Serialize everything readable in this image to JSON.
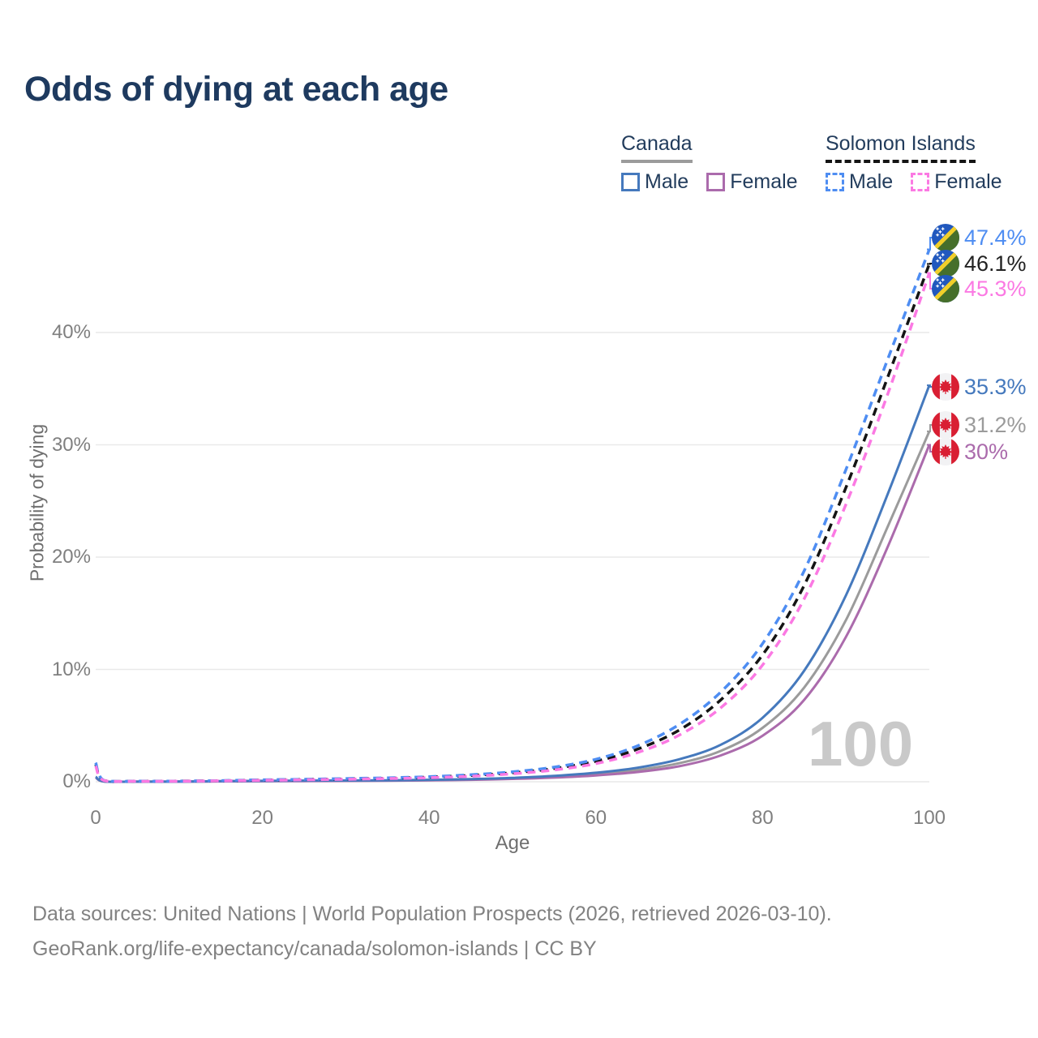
{
  "title": "Odds of dying at each age",
  "legend": {
    "canada": {
      "label": "Canada",
      "male_label": "Male",
      "female_label": "Female"
    },
    "solomon_islands": {
      "label": "Solomon Islands",
      "male_label": "Male",
      "female_label": "Female"
    }
  },
  "y_axis": {
    "title": "Probability of dying",
    "ticks": [
      {
        "value": 0,
        "label": "0%"
      },
      {
        "value": 10,
        "label": "10%"
      },
      {
        "value": 20,
        "label": "20%"
      },
      {
        "value": 30,
        "label": "30%"
      },
      {
        "value": 40,
        "label": "40%"
      }
    ]
  },
  "x_axis": {
    "title": "Age",
    "ticks": [
      {
        "value": 0,
        "label": "0"
      },
      {
        "value": 20,
        "label": "20"
      },
      {
        "value": 40,
        "label": "40"
      },
      {
        "value": 60,
        "label": "60"
      },
      {
        "value": 80,
        "label": "80"
      },
      {
        "value": 100,
        "label": "100"
      }
    ]
  },
  "watermark": "100",
  "footer": {
    "line1": "Data sources: United Nations | World Population Prospects (2026, retrieved 2026-03-10).",
    "line2": "GeoRank.org/life-expectancy/canada/solomon-islands | CC BY"
  },
  "chart_data": {
    "type": "line",
    "title": "Odds of dying at each age",
    "xlabel": "Age",
    "ylabel": "Probability of dying",
    "xlim": [
      0,
      100
    ],
    "ylim": [
      0,
      48
    ],
    "grid": "horizontal",
    "legend_position": "top-right",
    "x": [
      0,
      1,
      5,
      10,
      15,
      20,
      25,
      30,
      35,
      40,
      45,
      50,
      55,
      60,
      65,
      70,
      75,
      80,
      85,
      90,
      95,
      100
    ],
    "series": [
      {
        "name": "Solomon Islands Male",
        "country": "Solomon Islands",
        "sex": "male",
        "color": "#4e8df2",
        "dash": true,
        "end_label": "47.4%",
        "end_value": 47.4,
        "values": [
          1.7,
          0.12,
          0.05,
          0.06,
          0.1,
          0.17,
          0.22,
          0.28,
          0.35,
          0.45,
          0.62,
          0.88,
          1.3,
          2.0,
          3.2,
          5.1,
          8.0,
          12.3,
          18.8,
          27.8,
          37.6,
          47.4
        ]
      },
      {
        "name": "Solomon Islands Both sexes",
        "country": "Solomon Islands",
        "sex": "both",
        "color": "#141414",
        "dash": true,
        "end_label": "46.1%",
        "end_value": 46.1,
        "values": [
          1.55,
          0.11,
          0.045,
          0.055,
          0.09,
          0.15,
          0.2,
          0.25,
          0.31,
          0.41,
          0.56,
          0.8,
          1.18,
          1.82,
          2.9,
          4.6,
          7.3,
          11.3,
          17.5,
          26.2,
          36.0,
          46.1
        ]
      },
      {
        "name": "Solomon Islands Female",
        "country": "Solomon Islands",
        "sex": "female",
        "color": "#fb79e3",
        "dash": true,
        "end_label": "45.3%",
        "end_value": 45.3,
        "values": [
          1.4,
          0.1,
          0.04,
          0.05,
          0.08,
          0.13,
          0.17,
          0.22,
          0.28,
          0.36,
          0.49,
          0.71,
          1.05,
          1.62,
          2.6,
          4.15,
          6.6,
          10.4,
          16.3,
          24.7,
          34.5,
          45.3
        ]
      },
      {
        "name": "Canada Male",
        "country": "Canada",
        "sex": "male",
        "color": "#4579bd",
        "dash": false,
        "end_label": "35.3%",
        "end_value": 35.3,
        "values": [
          0.45,
          0.03,
          0.01,
          0.012,
          0.05,
          0.08,
          0.1,
          0.11,
          0.13,
          0.17,
          0.23,
          0.34,
          0.52,
          0.8,
          1.25,
          2.0,
          3.3,
          5.7,
          9.9,
          16.6,
          25.6,
          35.3
        ]
      },
      {
        "name": "Canada Both sexes",
        "country": "Canada",
        "sex": "both",
        "color": "#9b9b9b",
        "dash": false,
        "end_label": "31.2%",
        "end_value": 31.2,
        "values": [
          0.42,
          0.027,
          0.009,
          0.011,
          0.04,
          0.06,
          0.08,
          0.09,
          0.11,
          0.14,
          0.2,
          0.29,
          0.44,
          0.67,
          1.05,
          1.65,
          2.75,
          4.8,
          8.4,
          14.4,
          22.7,
          31.2
        ]
      },
      {
        "name": "Canada Female",
        "country": "Canada",
        "sex": "female",
        "color": "#ab6bac",
        "dash": false,
        "end_label": "30%",
        "end_value": 30.0,
        "values": [
          0.38,
          0.024,
          0.008,
          0.009,
          0.03,
          0.045,
          0.055,
          0.07,
          0.09,
          0.12,
          0.17,
          0.25,
          0.37,
          0.56,
          0.87,
          1.38,
          2.35,
          4.1,
          7.3,
          12.9,
          20.9,
          30.0
        ]
      }
    ]
  }
}
